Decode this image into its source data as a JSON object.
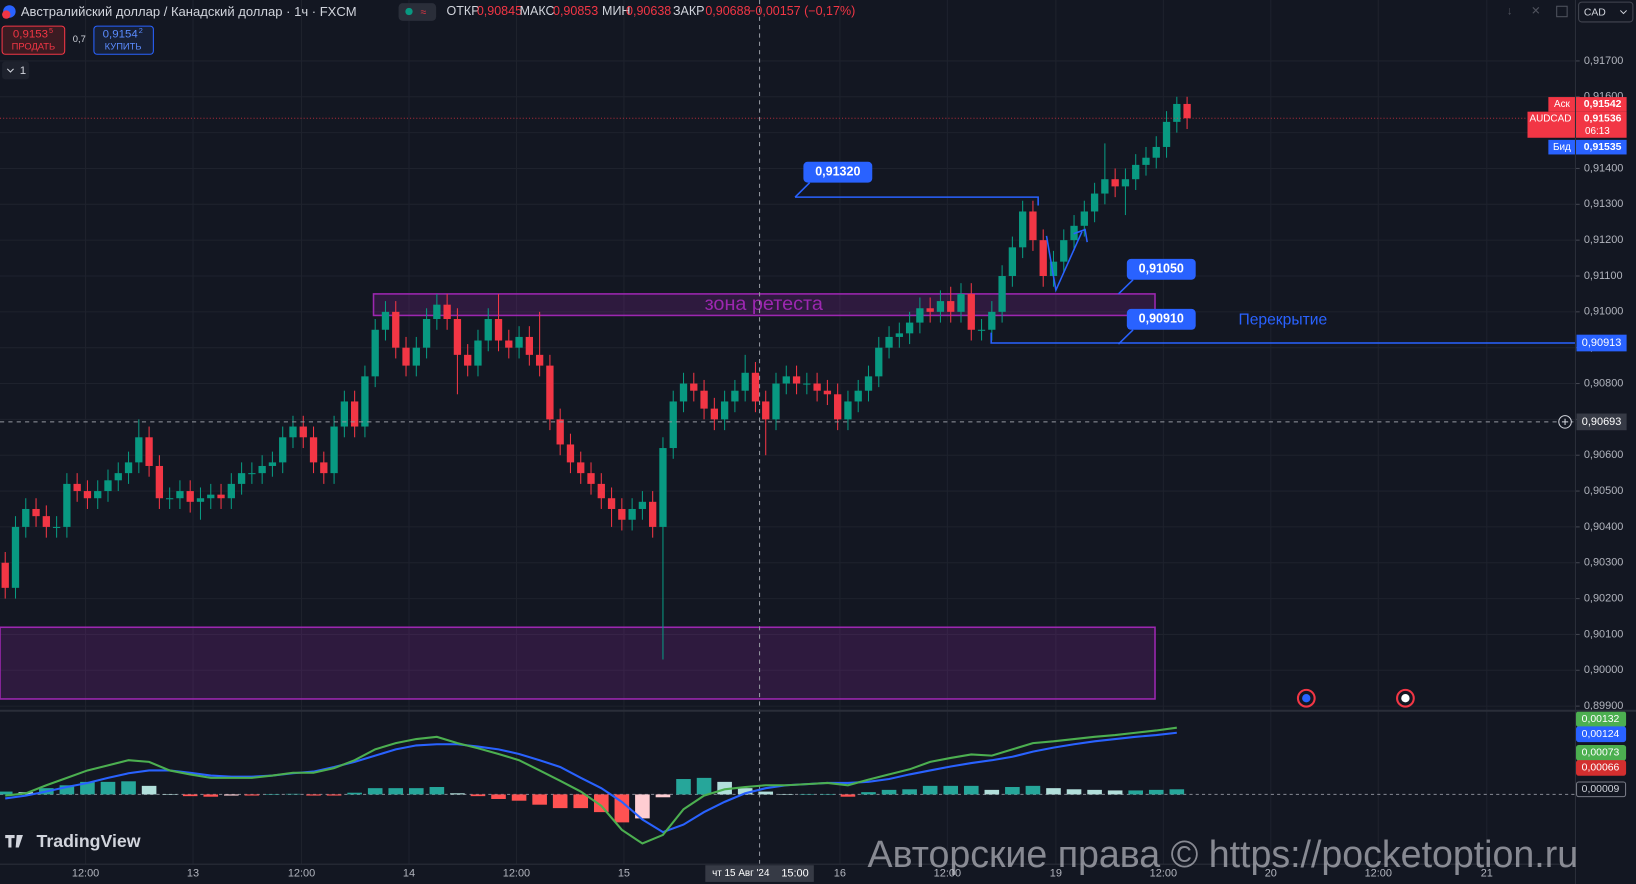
{
  "header": {
    "symbol": "Австралийский доллар / Канадский доллар · 1ч · FXCM",
    "stats": [
      {
        "label": "ОТКР",
        "value": "0,90845"
      },
      {
        "label": "МАКС",
        "value": "0,90853"
      },
      {
        "label": "МИН",
        "value": "0,90638"
      },
      {
        "label": "ЗАКР",
        "value": "0,90688"
      }
    ],
    "change": "−0,00157 (−0,17%)",
    "sell": {
      "price": "0,9153",
      "pip": "5",
      "label": "ПРОДАТЬ"
    },
    "spread": "0,7",
    "buy": {
      "price": "0,9154",
      "pip": "2",
      "label": "КУПИТЬ"
    },
    "layout_badge": "1",
    "currency": "CAD"
  },
  "chart_data": [
    {
      "type": "candlestick",
      "x_labels": [
        "12:00",
        "13",
        "12:00",
        "14",
        "12:00",
        "15",
        "16",
        "12:00",
        "19",
        "12:00",
        "20",
        "12:00",
        "21"
      ],
      "open": [
        0.903,
        0.9023,
        0.904,
        0.9045,
        0.9043,
        0.904,
        0.904,
        0.9052,
        0.905,
        0.9048,
        0.905,
        0.9053,
        0.9055,
        0.9058,
        0.9065,
        0.9057,
        0.9048,
        0.9048,
        0.905,
        0.9047,
        0.9048,
        0.9049,
        0.9048,
        0.9052,
        0.9055,
        0.9055,
        0.9057,
        0.9058,
        0.9065,
        0.9068,
        0.9065,
        0.9058,
        0.9055,
        0.9068,
        0.9075,
        0.9068,
        0.9082,
        0.9095,
        0.91,
        0.909,
        0.9085,
        0.909,
        0.9098,
        0.9102,
        0.9098,
        0.9088,
        0.9085,
        0.9092,
        0.9098,
        0.9092,
        0.909,
        0.9093,
        0.9088,
        0.9085,
        0.907,
        0.9063,
        0.9058,
        0.9055,
        0.9052,
        0.9048,
        0.9045,
        0.9042,
        0.9045,
        0.9047,
        0.904,
        0.9062,
        0.9075,
        0.908,
        0.9078,
        0.9073,
        0.907,
        0.9075,
        0.9078,
        0.9083,
        0.9075,
        0.907,
        0.908,
        0.9082,
        0.908,
        0.908,
        0.9078,
        0.9077,
        0.907,
        0.9075,
        0.9078,
        0.9082,
        0.909,
        0.9093,
        0.9094,
        0.9097,
        0.9101,
        0.91,
        0.9103,
        0.91,
        0.9105,
        0.9095,
        0.9095,
        0.91,
        0.911,
        0.9118,
        0.9128,
        0.912,
        0.911,
        0.9114,
        0.912,
        0.9124,
        0.9128,
        0.9133,
        0.9137,
        0.9135,
        0.9137,
        0.9141,
        0.9143,
        0.9146,
        0.9153,
        0.9158
      ],
      "high": [
        0.9033,
        0.9043,
        0.9048,
        0.9048,
        0.9046,
        0.9043,
        0.9055,
        0.9055,
        0.9053,
        0.9053,
        0.9056,
        0.9058,
        0.9061,
        0.907,
        0.9068,
        0.906,
        0.9051,
        0.9053,
        0.9053,
        0.9051,
        0.9052,
        0.9052,
        0.9055,
        0.9058,
        0.9058,
        0.906,
        0.9061,
        0.9068,
        0.9071,
        0.9071,
        0.9068,
        0.9061,
        0.9071,
        0.9078,
        0.9078,
        0.9085,
        0.9098,
        0.9103,
        0.9103,
        0.9093,
        0.9093,
        0.9101,
        0.9105,
        0.9105,
        0.9101,
        0.9091,
        0.9095,
        0.9101,
        0.9105,
        0.9095,
        0.9096,
        0.9096,
        0.91,
        0.9088,
        0.9073,
        0.9066,
        0.9061,
        0.9058,
        0.9055,
        0.9051,
        0.9048,
        0.9048,
        0.905,
        0.905,
        0.9065,
        0.9078,
        0.9083,
        0.9083,
        0.9081,
        0.9076,
        0.9078,
        0.9081,
        0.9088,
        0.9086,
        0.9078,
        0.9083,
        0.9085,
        0.9085,
        0.9083,
        0.9083,
        0.9081,
        0.908,
        0.9078,
        0.9081,
        0.9085,
        0.9093,
        0.9096,
        0.9097,
        0.91,
        0.9104,
        0.9104,
        0.9106,
        0.9107,
        0.9108,
        0.9108,
        0.9098,
        0.9103,
        0.9113,
        0.9121,
        0.9131,
        0.9131,
        0.9123,
        0.9117,
        0.9123,
        0.9127,
        0.9131,
        0.9136,
        0.9147,
        0.914,
        0.914,
        0.9144,
        0.9146,
        0.9149,
        0.9156,
        0.916,
        0.916
      ],
      "low": [
        0.902,
        0.902,
        0.9037,
        0.904,
        0.9037,
        0.9037,
        0.9037,
        0.9047,
        0.9045,
        0.9045,
        0.9047,
        0.905,
        0.9052,
        0.9055,
        0.9054,
        0.9045,
        0.9045,
        0.9045,
        0.9044,
        0.9042,
        0.9045,
        0.9045,
        0.9045,
        0.9049,
        0.9052,
        0.9052,
        0.9054,
        0.9055,
        0.9062,
        0.9062,
        0.9055,
        0.9052,
        0.9052,
        0.9065,
        0.9065,
        0.9065,
        0.9079,
        0.9092,
        0.9087,
        0.9082,
        0.9082,
        0.9087,
        0.9095,
        0.9095,
        0.9077,
        0.9082,
        0.9082,
        0.9089,
        0.9089,
        0.9087,
        0.9087,
        0.9085,
        0.9082,
        0.9067,
        0.906,
        0.9055,
        0.9052,
        0.9049,
        0.9045,
        0.904,
        0.9039,
        0.9039,
        0.9042,
        0.9037,
        0.9003,
        0.9059,
        0.9072,
        0.9075,
        0.907,
        0.9067,
        0.9067,
        0.9072,
        0.9075,
        0.9072,
        0.906,
        0.9067,
        0.9077,
        0.9077,
        0.9077,
        0.9075,
        0.9074,
        0.9067,
        0.9067,
        0.9072,
        0.9075,
        0.9079,
        0.9087,
        0.909,
        0.9091,
        0.9094,
        0.9097,
        0.9097,
        0.9097,
        0.9097,
        0.9092,
        0.9092,
        0.9092,
        0.9097,
        0.9107,
        0.9115,
        0.9117,
        0.9107,
        0.9107,
        0.9111,
        0.9117,
        0.9121,
        0.9125,
        0.913,
        0.9132,
        0.9127,
        0.9134,
        0.9138,
        0.914,
        0.9143,
        0.915,
        0.9151
      ],
      "close": [
        0.9023,
        0.904,
        0.9045,
        0.9043,
        0.904,
        0.904,
        0.9052,
        0.905,
        0.9048,
        0.905,
        0.9053,
        0.9055,
        0.9058,
        0.9065,
        0.9057,
        0.9048,
        0.9048,
        0.905,
        0.9047,
        0.9048,
        0.9049,
        0.9048,
        0.9052,
        0.9055,
        0.9055,
        0.9057,
        0.9058,
        0.9065,
        0.9068,
        0.9065,
        0.9058,
        0.9055,
        0.9068,
        0.9075,
        0.9068,
        0.9082,
        0.9095,
        0.91,
        0.909,
        0.9085,
        0.909,
        0.9098,
        0.9102,
        0.9098,
        0.9088,
        0.9085,
        0.9092,
        0.9098,
        0.9092,
        0.909,
        0.9093,
        0.9088,
        0.9085,
        0.907,
        0.9063,
        0.9058,
        0.9055,
        0.9052,
        0.9048,
        0.9045,
        0.9042,
        0.9045,
        0.9047,
        0.904,
        0.9062,
        0.9075,
        0.908,
        0.9078,
        0.9073,
        0.907,
        0.9075,
        0.9078,
        0.9083,
        0.9075,
        0.907,
        0.908,
        0.9082,
        0.908,
        0.908,
        0.9078,
        0.9077,
        0.907,
        0.9075,
        0.9078,
        0.9082,
        0.909,
        0.9093,
        0.9094,
        0.9097,
        0.9101,
        0.91,
        0.9103,
        0.91,
        0.9105,
        0.9095,
        0.9095,
        0.91,
        0.911,
        0.9118,
        0.9128,
        0.912,
        0.911,
        0.9114,
        0.912,
        0.9124,
        0.9128,
        0.9133,
        0.9137,
        0.9135,
        0.9137,
        0.9141,
        0.9143,
        0.9146,
        0.9153,
        0.9158,
        0.9154
      ],
      "up_color": "#089981",
      "down_color": "#f23645",
      "ylim": [
        0.8989,
        0.9187
      ],
      "yticks": [
        {
          "value": 0.917,
          "label": "0,91700"
        },
        {
          "value": 0.916,
          "label": "0,91600"
        },
        {
          "value": 0.915,
          "label": "0,91500"
        },
        {
          "value": 0.914,
          "label": "0,91400"
        },
        {
          "value": 0.913,
          "label": "0,91300"
        },
        {
          "value": 0.912,
          "label": "0,91200"
        },
        {
          "value": 0.911,
          "label": "0,91100"
        },
        {
          "value": 0.91,
          "label": "0,91000"
        },
        {
          "value": 0.909,
          "label": "0,90900"
        },
        {
          "value": 0.908,
          "label": "0,90800"
        },
        {
          "value": 0.907,
          "label": "0,90700"
        },
        {
          "value": 0.906,
          "label": "0,90600"
        },
        {
          "value": 0.905,
          "label": "0,90500"
        },
        {
          "value": 0.904,
          "label": "0,90400"
        },
        {
          "value": 0.903,
          "label": "0,90300"
        },
        {
          "value": 0.902,
          "label": "0,90200"
        },
        {
          "value": 0.901,
          "label": "0,90100"
        },
        {
          "value": 0.9,
          "label": "0,90000"
        },
        {
          "value": 0.899,
          "label": "0,89900"
        }
      ],
      "grid": true,
      "zones": [
        {
          "label": "зона ретеста",
          "range": [
            0.9099,
            0.9105
          ]
        },
        {
          "range": [
            0.8992,
            0.9012
          ]
        }
      ],
      "levels": [
        {
          "value": 0.9132,
          "label": "0,91320"
        },
        {
          "value": 0.9105,
          "label": "0,91050"
        },
        {
          "value": 0.9091,
          "label": "0,90910"
        }
      ],
      "overlap": {
        "label": "Перекрытие",
        "price": {
          "value": 0.90913,
          "label": "0,90913"
        }
      },
      "crosshair": {
        "date": "чт 15 Авг '24",
        "time": "15:00",
        "price": {
          "value": 0.90693,
          "label": "0,90693"
        }
      },
      "quote": {
        "ask_label": "Аск",
        "ask": "0,91542",
        "symbol": "AUDCAD",
        "last": "0,91536",
        "countdown": "06:13",
        "bid_label": "Бид",
        "bid": "0,91535"
      }
    },
    {
      "type": "macd",
      "series": [
        {
          "color": "#4caf50",
          "values": [
            -2e-05,
            2e-05,
            0.00016,
            0.00029,
            0.00042,
            0.00051,
            0.0006,
            0.00057,
            0.00042,
            0.00035,
            0.00029,
            0.00029,
            0.00029,
            0.00033,
            0.00038,
            0.00038,
            0.00046,
            0.0006,
            0.00079,
            0.0009,
            0.00097,
            0.00101,
            0.0009,
            0.00081,
            0.00071,
            0.0006,
            0.00042,
            0.00024,
            5e-05,
            -0.0002,
            -0.00062,
            -0.00086,
            -0.00071,
            -0.00026,
            -2e-05,
            9e-05,
            0.00013,
            0.00016,
            0.00016,
            0.00018,
            0.0002,
            0.00016,
            0.00026,
            0.00035,
            0.00044,
            0.00057,
            0.00064,
            0.0007,
            0.00068,
            0.00079,
            0.0009,
            0.00093,
            0.00097,
            0.00101,
            0.00104,
            0.00108,
            0.00112,
            0.00117
          ]
        },
        {
          "color": "#2962ff",
          "values": [
            -7e-05,
            -2e-05,
            5e-05,
            0.00013,
            0.0002,
            0.00029,
            0.00037,
            0.00042,
            0.00042,
            0.00038,
            0.00033,
            0.00031,
            0.00031,
            0.00033,
            0.00037,
            0.0004,
            0.00048,
            0.00057,
            0.00068,
            0.00079,
            0.00086,
            0.00088,
            0.00088,
            0.00084,
            0.00079,
            0.00071,
            0.0006,
            0.00048,
            0.00029,
            0.00011,
            -0.00013,
            -0.00044,
            -0.00066,
            -0.00053,
            -0.00031,
            -0.00013,
            2e-05,
            0.00011,
            0.00016,
            0.00018,
            0.0002,
            0.0002,
            0.00022,
            0.00027,
            0.00035,
            0.00042,
            0.00049,
            0.00055,
            0.0006,
            0.00066,
            0.00075,
            0.00082,
            0.00088,
            0.00093,
            0.00097,
            0.00101,
            0.00104,
            0.00108
          ]
        }
      ],
      "histogram": [
        5e-05,
        4e-05,
        0.00011,
        0.00016,
        0.00022,
        0.00022,
        0.00023,
        0.00015,
        0.0,
        -3e-05,
        -4e-05,
        -2e-05,
        -2e-05,
        0.0,
        1e-05,
        -2e-05,
        -2e-05,
        3e-05,
        0.00011,
        0.00011,
        0.00011,
        0.00013,
        2e-05,
        -3e-05,
        -8e-05,
        -0.00011,
        -0.00018,
        -0.00024,
        -0.00024,
        -0.00031,
        -0.00049,
        -0.00042,
        -5e-05,
        0.00027,
        0.00029,
        0.00022,
        0.00011,
        5e-05,
        0.0,
        0.0,
        0.0,
        -4e-05,
        4e-05,
        8e-05,
        9e-05,
        0.00015,
        0.00015,
        0.00015,
        8e-05,
        0.00013,
        0.00015,
        0.00011,
        9e-05,
        8e-05,
        7e-05,
        7e-05,
        8e-05,
        9e-05
      ],
      "histogram_colors": [
        "#26a69a",
        "#b2dfdb",
        "#ff5252",
        "#ffcdd2"
      ],
      "ylim": [
        -0.00157,
        0.00143
      ],
      "last_values": [
        {
          "value": 0.00132,
          "label": "0,00132",
          "color": "#4caf50"
        },
        {
          "value": 0.00124,
          "label": "0,00124",
          "color": "#2962ff"
        },
        {
          "value": 0.00073,
          "label": "0,00073",
          "color": "#4caf50"
        },
        {
          "value": 0.00066,
          "label": "0,00066",
          "color": "#d32f2f"
        },
        {
          "value": 9e-05,
          "label": "0,00009",
          "color": "#131722"
        }
      ]
    }
  ],
  "brand": "TradingView",
  "watermark": "Авторские права © https://pocketoption.ru"
}
